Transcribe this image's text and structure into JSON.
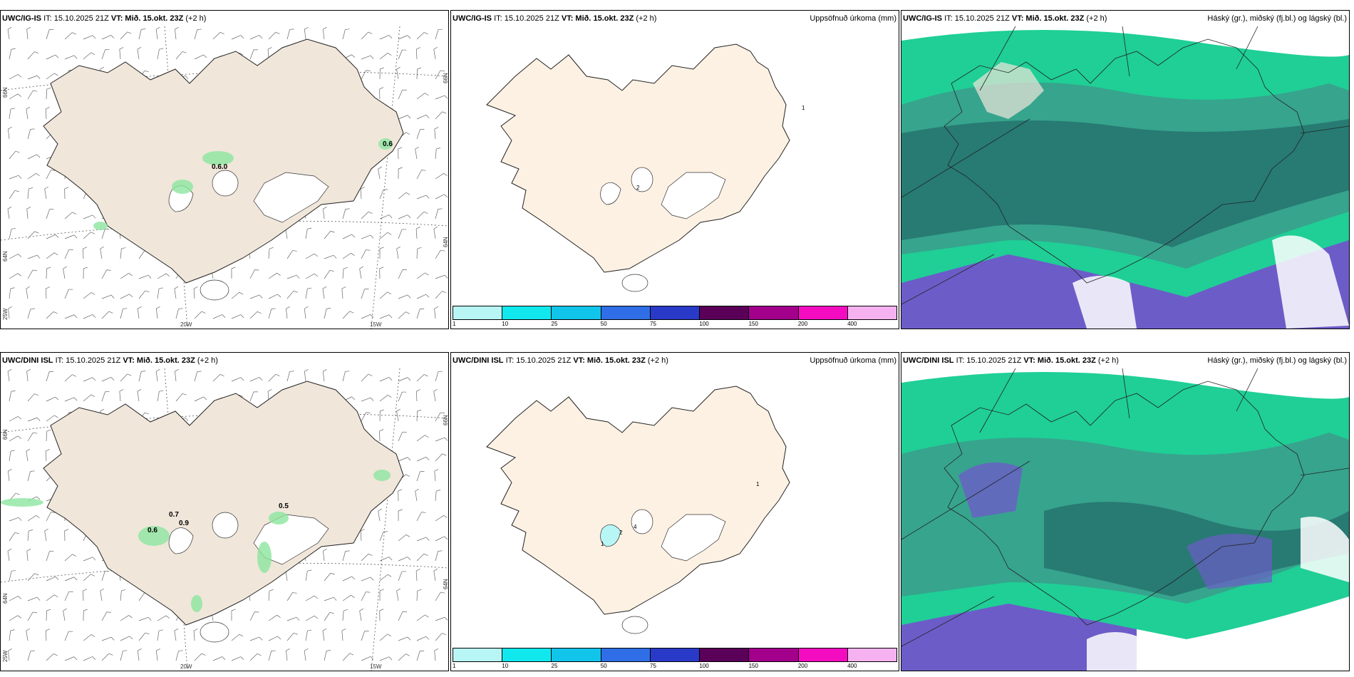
{
  "colors": {
    "land_wind": "#f0e6da",
    "land_precip": "#fdf1e3",
    "cloud_high": "#3c9c8c",
    "cloud_mid": "#1fcf96",
    "cloud_low": "#6c5cc8",
    "precip_light": "#8de6a0"
  },
  "panels": [
    {
      "id": "igis-wind",
      "model": "UWC/IG-IS",
      "it_label": "IT: 15.10.2025 21Z",
      "vt_label": "VT: Mið. 15.okt. 23Z",
      "lead": "(+2 h)",
      "right_title": "",
      "lat_labels": [
        "66N",
        "64N",
        "25W"
      ],
      "right_lat_labels": [
        "66N",
        "64N"
      ],
      "lon_labels": [
        "20W",
        "15W"
      ],
      "markers": [
        "0.6",
        "0.6.0"
      ]
    },
    {
      "id": "igis-precip",
      "model": "UWC/IG-IS",
      "it_label": "IT: 15.10.2025 21Z",
      "vt_label": "VT: Mið. 15.okt. 23Z",
      "lead": "(+2 h)",
      "right_title": "Uppsöfnuð úrkoma (mm)",
      "markers": [
        "1",
        "2"
      ]
    },
    {
      "id": "igis-cloud",
      "model": "UWC/IG-IS",
      "it_label": "IT: 15.10.2025 21Z",
      "vt_label": "VT: Mið. 15.okt. 23Z",
      "lead": "(+2 h)",
      "right_title": "Háský (gr.), miðský (fj.bl.) og lágský (bl.)"
    },
    {
      "id": "dini-wind",
      "model": "UWC/DINI ISL",
      "it_label": "IT: 15.10.2025 21Z",
      "vt_label": "VT: Mið. 15.okt. 23Z",
      "lead": "(+2 h)",
      "right_title": "",
      "lat_labels": [
        "66N",
        "64N",
        "25W"
      ],
      "right_lat_labels": [
        "66N",
        "64N"
      ],
      "lon_labels": [
        "20W",
        "15W"
      ],
      "markers": [
        "0.7",
        "0.6",
        "0.9",
        "0.5"
      ]
    },
    {
      "id": "dini-precip",
      "model": "UWC/DINI ISL",
      "it_label": "IT: 15.10.2025 21Z",
      "vt_label": "VT: Mið. 15.okt. 23Z",
      "lead": "(+2 h)",
      "right_title": "Uppsöfnuð úrkoma (mm)",
      "markers": [
        "1",
        "1",
        "2",
        "4"
      ]
    },
    {
      "id": "dini-cloud",
      "model": "UWC/DINI ISL",
      "it_label": "IT: 15.10.2025 21Z",
      "vt_label": "VT: Mið. 15.okt. 23Z",
      "lead": "(+2 h)",
      "right_title": "Háský (gr.), miðský (fj.bl.) og lágský (bl.)"
    }
  ],
  "colorbar": {
    "ticks": [
      "1",
      "10",
      "25",
      "50",
      "75",
      "100",
      "150",
      "200",
      "400"
    ],
    "colors": [
      "#b8f6f6",
      "#10e8ee",
      "#10c4ea",
      "#2f6ee6",
      "#2a3ac8",
      "#5a0058",
      "#a3008c",
      "#f40cc0",
      "#f6b2f0"
    ]
  }
}
